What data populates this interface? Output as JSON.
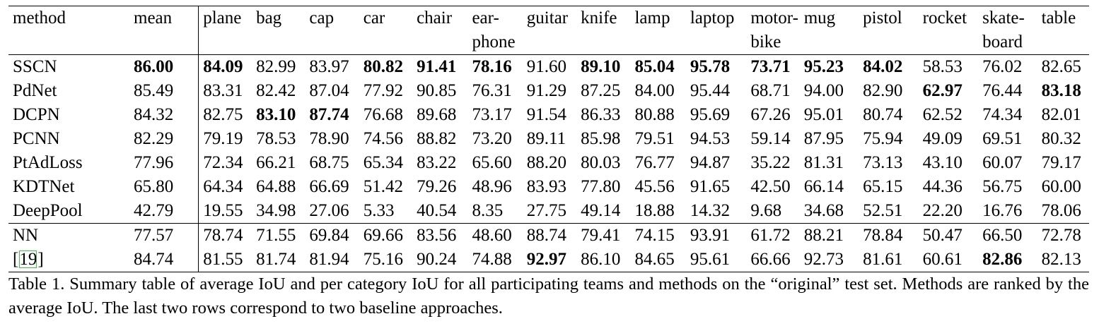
{
  "table": {
    "columns": [
      {
        "key": "method",
        "lines": [
          "method"
        ]
      },
      {
        "key": "mean",
        "lines": [
          "mean"
        ]
      },
      {
        "key": "plane",
        "lines": [
          "plane"
        ]
      },
      {
        "key": "bag",
        "lines": [
          "bag"
        ]
      },
      {
        "key": "cap",
        "lines": [
          "cap"
        ]
      },
      {
        "key": "car",
        "lines": [
          "car"
        ]
      },
      {
        "key": "chair",
        "lines": [
          "chair"
        ]
      },
      {
        "key": "earphone",
        "lines": [
          "ear-",
          "phone"
        ]
      },
      {
        "key": "guitar",
        "lines": [
          "guitar"
        ]
      },
      {
        "key": "knife",
        "lines": [
          "knife"
        ]
      },
      {
        "key": "lamp",
        "lines": [
          "lamp"
        ]
      },
      {
        "key": "laptop",
        "lines": [
          "laptop"
        ]
      },
      {
        "key": "motorbike",
        "lines": [
          "motor-",
          "bike"
        ]
      },
      {
        "key": "mug",
        "lines": [
          "mug"
        ]
      },
      {
        "key": "pistol",
        "lines": [
          "pistol"
        ]
      },
      {
        "key": "rocket",
        "lines": [
          "rocket"
        ]
      },
      {
        "key": "skateboard",
        "lines": [
          "skate-",
          "board"
        ]
      },
      {
        "key": "table",
        "lines": [
          "table"
        ]
      }
    ],
    "groups": [
      {
        "name": "teams",
        "rows": [
          {
            "method": "SSCN",
            "values": [
              "86.00",
              "84.09",
              "82.99",
              "83.97",
              "80.82",
              "91.41",
              "78.16",
              "91.60",
              "89.10",
              "85.04",
              "95.78",
              "73.71",
              "95.23",
              "84.02",
              "58.53",
              "76.02",
              "82.65"
            ],
            "bold": [
              0,
              1,
              4,
              5,
              6,
              8,
              9,
              10,
              11,
              12,
              13
            ]
          },
          {
            "method": "PdNet",
            "values": [
              "85.49",
              "83.31",
              "82.42",
              "87.04",
              "77.92",
              "90.85",
              "76.31",
              "91.29",
              "87.25",
              "84.00",
              "95.44",
              "68.71",
              "94.00",
              "82.90",
              "62.97",
              "76.44",
              "83.18"
            ],
            "bold": [
              14,
              16
            ]
          },
          {
            "method": "DCPN",
            "values": [
              "84.32",
              "82.75",
              "83.10",
              "87.74",
              "76.68",
              "89.68",
              "73.17",
              "91.54",
              "86.33",
              "80.88",
              "95.69",
              "67.26",
              "95.01",
              "80.74",
              "62.52",
              "74.34",
              "82.01"
            ],
            "bold": [
              2,
              3
            ]
          },
          {
            "method": "PCNN",
            "values": [
              "82.29",
              "79.19",
              "78.53",
              "78.90",
              "74.56",
              "88.82",
              "73.20",
              "89.11",
              "85.98",
              "79.51",
              "94.53",
              "59.14",
              "87.95",
              "75.94",
              "49.09",
              "69.51",
              "80.32"
            ],
            "bold": []
          },
          {
            "method": "PtAdLoss",
            "values": [
              "77.96",
              "72.34",
              "66.21",
              "68.75",
              "65.34",
              "83.22",
              "65.60",
              "88.20",
              "80.03",
              "76.77",
              "94.87",
              "35.22",
              "81.31",
              "73.13",
              "43.10",
              "60.07",
              "79.17"
            ],
            "bold": []
          },
          {
            "method": "KDTNet",
            "values": [
              "65.80",
              "64.34",
              "64.88",
              "66.69",
              "51.42",
              "79.26",
              "48.96",
              "83.93",
              "77.80",
              "45.56",
              "91.65",
              "42.50",
              "66.14",
              "65.15",
              "44.36",
              "56.75",
              "60.00"
            ],
            "bold": []
          },
          {
            "method": "DeepPool",
            "values": [
              "42.79",
              "19.55",
              "34.98",
              "27.06",
              "5.33",
              "40.54",
              "8.35",
              "27.75",
              "49.14",
              "18.88",
              "14.32",
              "9.68",
              "34.68",
              "52.51",
              "22.20",
              "16.76",
              "78.06"
            ],
            "bold": []
          }
        ]
      },
      {
        "name": "baselines",
        "rows": [
          {
            "method": "NN",
            "values": [
              "77.57",
              "78.74",
              "71.55",
              "69.84",
              "69.66",
              "83.56",
              "48.60",
              "88.74",
              "79.41",
              "74.15",
              "93.91",
              "61.72",
              "88.21",
              "78.84",
              "50.47",
              "66.50",
              "72.78"
            ],
            "bold": []
          },
          {
            "method": "[19]",
            "cite_inner": "19",
            "values": [
              "84.74",
              "81.55",
              "81.74",
              "81.94",
              "75.16",
              "90.24",
              "74.88",
              "92.97",
              "86.10",
              "84.65",
              "95.61",
              "66.66",
              "92.73",
              "81.61",
              "60.61",
              "82.86",
              "82.13"
            ],
            "bold": [
              7,
              15
            ]
          }
        ]
      }
    ]
  },
  "caption": "Table 1. Summary table of average IoU and per category IoU for all participating teams and methods on the “original” test set. Methods are ranked by the average IoU. The last two rows correspond to two baseline approaches."
}
